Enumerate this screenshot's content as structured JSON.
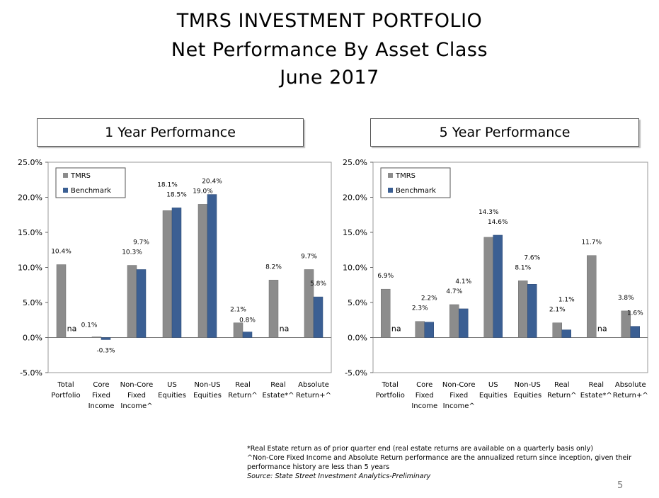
{
  "header": {
    "title": "TMRS INVESTMENT PORTFOLIO",
    "subtitle": "Net Performance By Asset Class",
    "date": "June 2017"
  },
  "chart_data": [
    {
      "type": "bar",
      "title": "1 Year Performance",
      "categories": [
        [
          "Total",
          "Portfolio"
        ],
        [
          "Core",
          "Fixed",
          "Income"
        ],
        [
          "Non-Core",
          "Fixed",
          "Income^"
        ],
        [
          "US",
          "Equities"
        ],
        [
          "Non-US",
          "Equities"
        ],
        [
          "Real",
          "Return^"
        ],
        [
          "Real",
          "Estate*^"
        ],
        [
          "Absolute",
          "Return+^"
        ]
      ],
      "series": [
        {
          "name": "TMRS",
          "color": "#8c8c8c",
          "values": [
            10.4,
            0.1,
            10.3,
            18.1,
            19.0,
            2.1,
            8.2,
            9.7
          ],
          "labels": [
            "10.4%",
            "0.1%",
            "10.3%",
            "18.1%",
            "19.0%",
            "2.1%",
            "8.2%",
            "9.7%"
          ]
        },
        {
          "name": "Benchmark",
          "color": "#3b5f93",
          "values": [
            null,
            -0.3,
            9.7,
            18.5,
            20.4,
            0.8,
            null,
            5.8
          ],
          "labels": [
            "na",
            "-0.3%",
            "9.7%",
            "18.5%",
            "20.4%",
            "0.8%",
            "na",
            "5.8%"
          ]
        }
      ],
      "ylim": [
        -5,
        25
      ],
      "yticks": [
        "-5.0%",
        "0.0%",
        "5.0%",
        "10.0%",
        "15.0%",
        "20.0%",
        "25.0%"
      ],
      "legend": "top-left"
    },
    {
      "type": "bar",
      "title": "5 Year Performance",
      "categories": [
        [
          "Total",
          "Portfolio"
        ],
        [
          "Core",
          "Fixed",
          "Income"
        ],
        [
          "Non-Core",
          "Fixed",
          "Income^"
        ],
        [
          "US",
          "Equities"
        ],
        [
          "Non-US",
          "Equities"
        ],
        [
          "Real",
          "Return^"
        ],
        [
          "Real",
          "Estate*^"
        ],
        [
          "Absolute",
          "Return+^"
        ]
      ],
      "series": [
        {
          "name": "TMRS",
          "color": "#8c8c8c",
          "values": [
            6.9,
            2.3,
            4.7,
            14.3,
            8.1,
            2.1,
            11.7,
            3.8
          ],
          "labels": [
            "6.9%",
            "2.3%",
            "4.7%",
            "14.3%",
            "8.1%",
            "2.1%",
            "11.7%",
            "3.8%"
          ]
        },
        {
          "name": "Benchmark",
          "color": "#3b5f93",
          "values": [
            null,
            2.2,
            4.1,
            14.6,
            7.6,
            1.1,
            null,
            1.6
          ],
          "labels": [
            "na",
            "2.2%",
            "4.1%",
            "14.6%",
            "7.6%",
            "1.1%",
            "na",
            "1.6%"
          ]
        }
      ],
      "ylim": [
        -5,
        25
      ],
      "yticks": [
        "-5.0%",
        "0.0%",
        "5.0%",
        "10.0%",
        "15.0%",
        "20.0%",
        "25.0%"
      ],
      "legend": "top-left"
    }
  ],
  "footnotes": [
    "*Real Estate return as of prior quarter end (real estate returns are available on a quarterly basis only)",
    "^Non-Core Fixed Income and Absolute Return performance are the annualized return since inception, given their",
    "performance history are less than 5 years",
    "Source: State Street Investment Analytics-Preliminary"
  ],
  "page_number": "5"
}
